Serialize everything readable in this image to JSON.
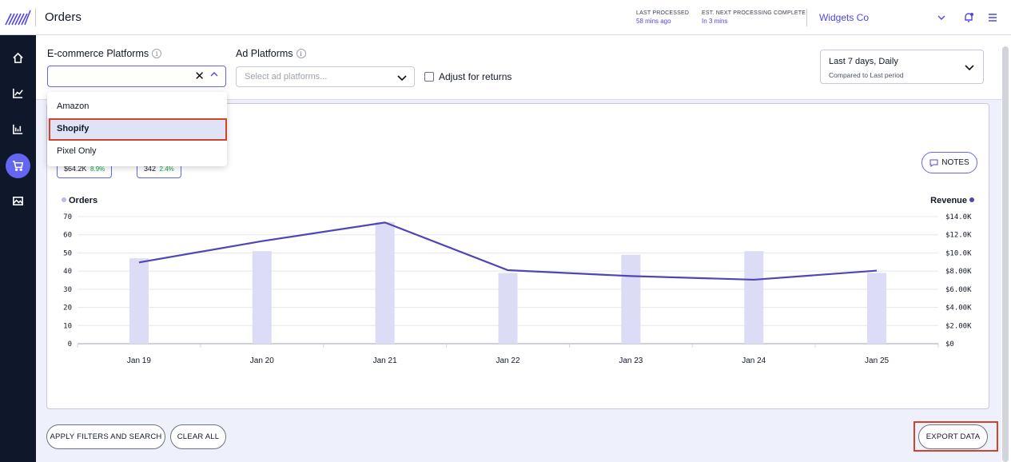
{
  "header": {
    "title": "Orders",
    "last_processed_label": "LAST PROCESSED",
    "last_processed_value": "58 mins ago",
    "next_processing_label": "EST. NEXT PROCESSING COMPLETE",
    "next_processing_value": "In 3 mins",
    "company": "Widgets Co"
  },
  "filters": {
    "ecommerce_label": "E-commerce Platforms",
    "ecommerce_value": "",
    "clear_symbol": "✕",
    "ad_label": "Ad Platforms",
    "ad_placeholder": "Select ad platforms...",
    "adjust_returns_label": "Adjust for returns",
    "date_range": "Last 7 days, Daily",
    "date_compare": "Compared to Last period"
  },
  "dropdown": {
    "options": [
      "Amazon",
      "Shopify",
      "Pixel Only"
    ],
    "selected": "Shopify"
  },
  "card": {
    "chip1_value": "$64.2K",
    "chip1_delta": "8.9%",
    "chip2_value": "342",
    "chip2_delta": "2.4%",
    "notes_label": "NOTES"
  },
  "chart_data": {
    "type": "bar",
    "categories": [
      "Jan 19",
      "Jan 20",
      "Jan 21",
      "Jan 22",
      "Jan 23",
      "Jan 24",
      "Jan 25"
    ],
    "series": [
      {
        "name": "Orders",
        "type": "bar",
        "axis": "left",
        "values": [
          47,
          51,
          67,
          39,
          49,
          51,
          39
        ]
      },
      {
        "name": "Revenue",
        "type": "line",
        "axis": "right",
        "values": [
          8950,
          11300,
          13350,
          8100,
          7450,
          7050,
          8050
        ]
      }
    ],
    "left_axis": {
      "label": "Orders",
      "ylim": [
        0,
        70
      ],
      "ticks": [
        "0",
        "10",
        "20",
        "30",
        "40",
        "50",
        "60",
        "70"
      ]
    },
    "right_axis": {
      "label": "Revenue",
      "ylim": [
        0,
        14000
      ],
      "ticks": [
        "$0",
        "$2.00K",
        "$4.00K",
        "$6.00K",
        "$8.00K",
        "$10.0K",
        "$12.0K",
        "$14.0K"
      ]
    },
    "bar_color": "#dcdcf6",
    "line_color": "#4f46b5",
    "grid": true
  },
  "footer": {
    "apply_label": "APPLY FILTERS AND SEARCH",
    "clear_label": "CLEAR ALL",
    "export_label": "EXPORT DATA"
  },
  "sidebar": {
    "items": [
      "home-icon",
      "line-chart-icon",
      "bar-chart-icon",
      "cart-icon",
      "image-icon"
    ],
    "active": "cart-icon"
  },
  "colors": {
    "accent": "#6366f1",
    "sidebar": "#0f172a",
    "highlight": "#d0452a"
  }
}
